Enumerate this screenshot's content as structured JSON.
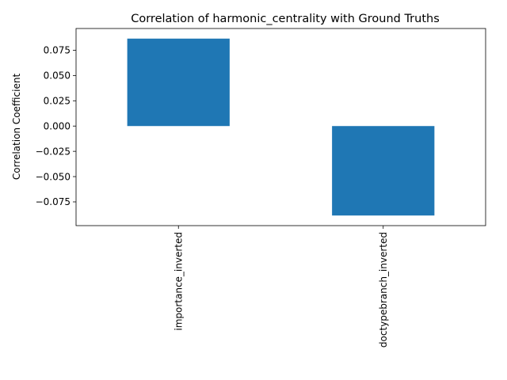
{
  "chart_data": {
    "type": "bar",
    "title": "Correlation of harmonic_centrality with Ground Truths",
    "xlabel": "",
    "ylabel": "Correlation Coefficient",
    "categories": [
      "importance_inverted",
      "doctypebranch_inverted"
    ],
    "values": [
      0.0865,
      -0.0885
    ],
    "ylim": [
      -0.0985,
      0.0965
    ],
    "yticks": [
      -0.075,
      -0.05,
      -0.025,
      0.0,
      0.025,
      0.05,
      0.075
    ],
    "ytick_labels": [
      "−0.075",
      "−0.050",
      "−0.025",
      "0.000",
      "0.025",
      "0.050",
      "0.075"
    ],
    "grid": false,
    "legend": "none",
    "bar_color": "#1f77b4"
  }
}
